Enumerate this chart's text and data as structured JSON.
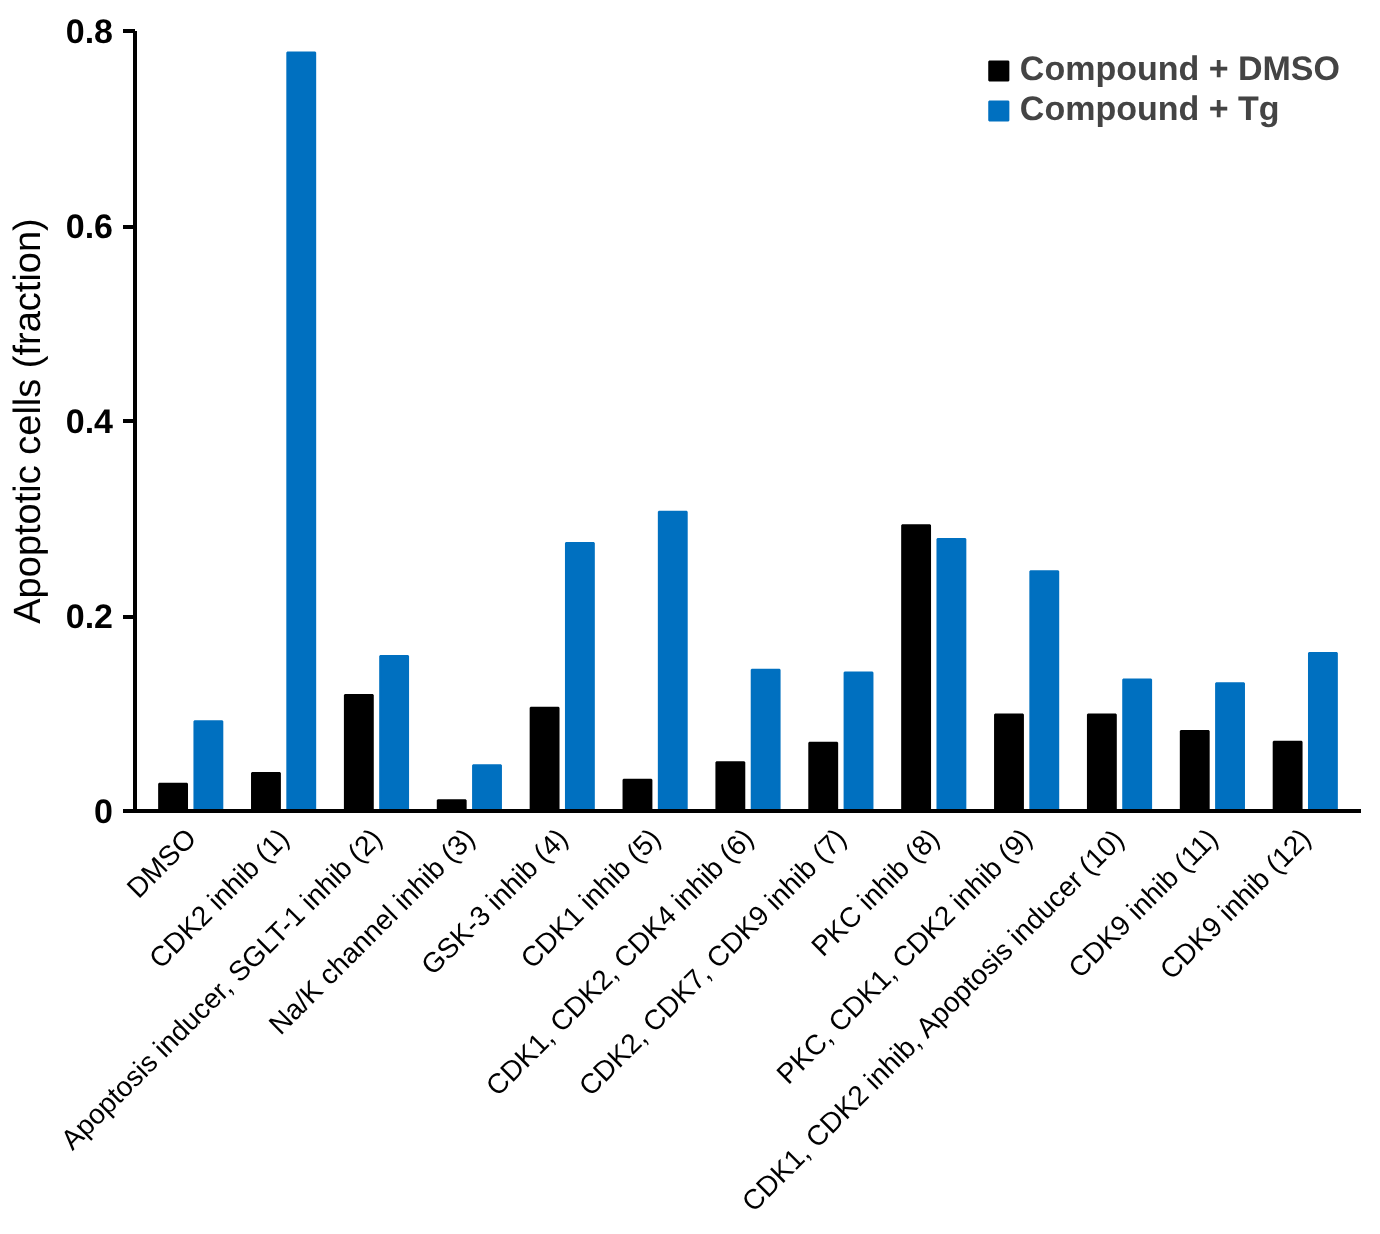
{
  "chart_data": {
    "type": "bar",
    "ylabel": "Apoptotic cells (fraction)",
    "categories": [
      "DMSO",
      "CDK2 inhib (1)",
      "Apoptosis inducer, SGLT-1 inhib (2)",
      "Na/K channel inhib (3)",
      "GSK-3 inhib (4)",
      "CDK1 inhib (5)",
      "CDK1, CDK2, CDK4 inhib (6)",
      "CDK2, CDK7, CDK9 inhib (7)",
      "PKC inhib (8)",
      "PKC, CDK1, CDK2 inhib (9)",
      "CDK1, CDK2 inhib, Apoptosis inducer (10)",
      "CDK9 inhib (11)",
      "CDK9 inhib (12)"
    ],
    "series": [
      {
        "name": "Compound + DMSO",
        "color": "#000000",
        "values": [
          0.028,
          0.039,
          0.119,
          0.011,
          0.106,
          0.032,
          0.05,
          0.07,
          0.293,
          0.099,
          0.099,
          0.082,
          0.071
        ]
      },
      {
        "name": "Compound + Tg",
        "color": "#0070c0",
        "values": [
          0.092,
          0.778,
          0.159,
          0.047,
          0.275,
          0.307,
          0.145,
          0.142,
          0.279,
          0.246,
          0.135,
          0.131,
          0.162
        ]
      }
    ],
    "ylim": [
      0,
      0.8
    ],
    "yticks": [
      {
        "value": 0,
        "label": "0"
      },
      0.2,
      0.4,
      0.6,
      0.8
    ],
    "grid": false,
    "legend": "top right"
  }
}
